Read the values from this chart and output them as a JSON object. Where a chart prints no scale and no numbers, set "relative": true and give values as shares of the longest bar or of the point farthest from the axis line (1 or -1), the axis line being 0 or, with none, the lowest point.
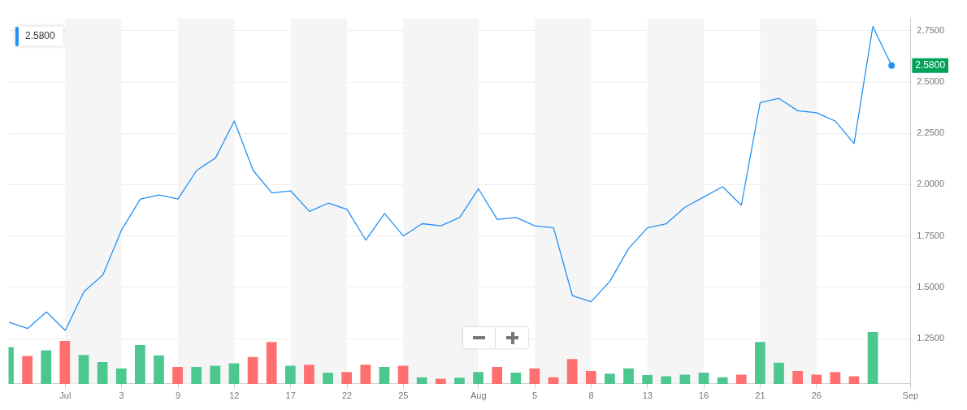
{
  "chart_data": [
    {
      "type": "line",
      "categories": [
        null,
        null,
        null,
        "Jul",
        null,
        null,
        "3",
        null,
        null,
        "9",
        null,
        null,
        "12",
        null,
        null,
        "17",
        null,
        null,
        "22",
        null,
        null,
        "25",
        null,
        null,
        null,
        "Aug",
        null,
        null,
        "5",
        null,
        null,
        "8",
        null,
        null,
        "13",
        null,
        null,
        "16",
        null,
        null,
        "21",
        null,
        null,
        "26",
        null,
        null,
        null,
        null,
        "Sep"
      ],
      "series": [
        {
          "color": "#2391f5",
          "values": [
            1.33,
            1.3,
            1.38,
            1.29,
            1.48,
            1.56,
            1.78,
            1.93,
            1.95,
            1.93,
            2.07,
            2.13,
            2.31,
            2.07,
            1.96,
            1.97,
            1.87,
            1.91,
            1.88,
            1.73,
            1.86,
            1.75,
            1.81,
            1.8,
            1.84,
            1.98,
            1.83,
            1.84,
            1.8,
            1.79,
            1.46,
            1.43,
            1.53,
            1.69,
            1.79,
            1.81,
            1.89,
            1.94,
            1.99,
            1.9,
            2.4,
            2.42,
            2.36,
            2.35,
            2.31,
            2.2,
            2.77,
            2.58,
            null
          ]
        }
      ],
      "ylim": [
        1.03,
        2.81
      ],
      "yticks": [
        {
          "value": 1.25,
          "label": "1.2500"
        },
        {
          "value": 1.5,
          "label": "1.5000"
        },
        {
          "value": 1.75,
          "label": "1.7500"
        },
        {
          "value": 2.0,
          "label": "2.0000"
        },
        {
          "value": 2.25,
          "label": "2.2500"
        },
        {
          "value": 2.5,
          "label": "2.5000"
        },
        {
          "value": 2.75,
          "label": "2.7500"
        }
      ],
      "bands": [
        {
          "axis": "x",
          "from": "Jul",
          "to": "3",
          "color": "#f5f5f5"
        },
        {
          "axis": "x",
          "from": "9",
          "to": "12",
          "color": "#f5f5f5"
        },
        {
          "axis": "x",
          "from": "17",
          "to": "22",
          "color": "#f5f5f5"
        },
        {
          "axis": "x",
          "from": "25",
          "to": "Aug",
          "color": "#f5f5f5"
        },
        {
          "axis": "x",
          "from": "5",
          "to": "8",
          "color": "#f5f5f5"
        },
        {
          "axis": "x",
          "from": "13",
          "to": "16",
          "color": "#f5f5f5"
        },
        {
          "axis": "x",
          "from": "21",
          "to": "26",
          "color": "#f5f5f5"
        }
      ],
      "annotations": [
        "2.5800",
        "2.5800"
      ],
      "grid": "y",
      "legend": false,
      "marker": "none",
      "line_style": "solid"
    },
    {
      "type": "bar",
      "relative": true,
      "categories": [
        null,
        null,
        null,
        null,
        null,
        null,
        null,
        null,
        null,
        null,
        null,
        null,
        null,
        null,
        null,
        null,
        null,
        null,
        null,
        null,
        null,
        null,
        null,
        null,
        null,
        null,
        null,
        null,
        null,
        null,
        null,
        null,
        null,
        null,
        null,
        null,
        null,
        null,
        null,
        null,
        null,
        null,
        null,
        null,
        null,
        null,
        null,
        null,
        null
      ],
      "values": [
        0.71,
        0.54,
        0.65,
        0.83,
        0.56,
        0.42,
        0.3,
        0.75,
        0.55,
        0.33,
        0.33,
        0.35,
        0.4,
        0.52,
        0.81,
        0.35,
        0.37,
        0.22,
        0.23,
        0.37,
        0.33,
        0.35,
        0.13,
        0.1,
        0.12,
        0.23,
        0.33,
        0.22,
        0.3,
        0.13,
        0.48,
        0.25,
        0.2,
        0.3,
        0.17,
        0.15,
        0.18,
        0.22,
        0.13,
        0.18,
        0.81,
        0.41,
        0.25,
        0.18,
        0.23,
        0.15,
        1,
        null,
        null
      ],
      "colors": [
        "#4cc790",
        "#ff6f6f",
        "#4cc790",
        "#ff6f6f",
        "#4cc790",
        "#4cc790",
        "#4cc790",
        "#4cc790",
        "#4cc790",
        "#ff6f6f",
        "#4cc790",
        "#4cc790",
        "#4cc790",
        "#ff6f6f",
        "#ff6f6f",
        "#4cc790",
        "#ff6f6f",
        "#4cc790",
        "#ff6f6f",
        "#ff6f6f",
        "#4cc790",
        "#ff6f6f",
        "#4cc790",
        "#ff6f6f",
        "#4cc790",
        "#4cc790",
        "#ff6f6f",
        "#4cc790",
        "#ff6f6f",
        "#ff6f6f",
        "#ff6f6f",
        "#ff6f6f",
        "#4cc790",
        "#4cc790",
        "#4cc790",
        "#4cc790",
        "#4cc790",
        "#4cc790",
        "#4cc790",
        "#ff6f6f",
        "#4cc790",
        "#4cc790",
        "#ff6f6f",
        "#ff6f6f",
        "#ff6f6f",
        "#ff6f6f",
        "#4cc790",
        "#4cc790",
        "#4cc790"
      ],
      "legend": false,
      "grid": false,
      "tick_labels": false
    }
  ]
}
